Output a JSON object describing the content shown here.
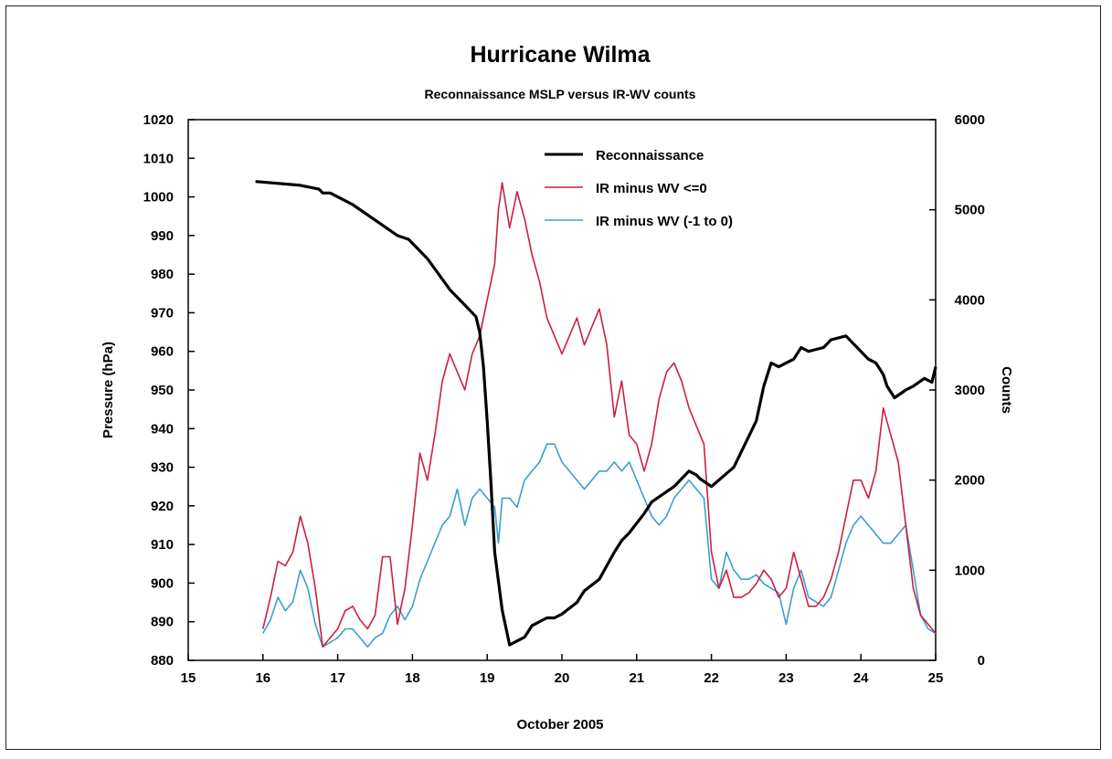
{
  "chart_data": {
    "type": "line",
    "title": "Hurricane Wilma",
    "subtitle": "Reconnaissance MSLP versus IR-WV counts",
    "xlabel": "October 2005",
    "ylabel_left": "Pressure (hPa)",
    "ylabel_right": "Counts",
    "xlim": [
      15,
      25
    ],
    "ylim_left": [
      880,
      1020
    ],
    "ylim_right": [
      0,
      6000
    ],
    "x_ticks": [
      "15",
      "16",
      "17",
      "18",
      "19",
      "20",
      "21",
      "22",
      "23",
      "24",
      "25"
    ],
    "y_left_ticks": [
      "880",
      "890",
      "900",
      "910",
      "920",
      "930",
      "940",
      "950",
      "960",
      "970",
      "980",
      "990",
      "1000",
      "1010",
      "1020"
    ],
    "y_right_ticks": [
      "0",
      "1000",
      "2000",
      "3000",
      "4000",
      "5000",
      "6000"
    ],
    "legend_position": "top-right",
    "grid": false,
    "series": [
      {
        "name": "Reconnaissance",
        "axis": "left",
        "color": "#000000",
        "x": [
          15.9,
          16.5,
          16.75,
          16.8,
          16.9,
          17.2,
          17.5,
          17.8,
          17.95,
          18.2,
          18.5,
          18.7,
          18.85,
          18.9,
          18.95,
          19.0,
          19.05,
          19.1,
          19.2,
          19.3,
          19.5,
          19.6,
          19.8,
          19.9,
          20.0,
          20.2,
          20.3,
          20.5,
          20.7,
          20.8,
          20.9,
          21.1,
          21.2,
          21.5,
          21.7,
          21.8,
          21.85,
          22.0,
          22.3,
          22.6,
          22.7,
          22.8,
          22.9,
          23.1,
          23.2,
          23.3,
          23.5,
          23.6,
          23.8,
          23.9,
          24.1,
          24.2,
          24.3,
          24.35,
          24.45,
          24.6,
          24.7,
          24.85,
          24.95,
          25.0
        ],
        "y": [
          1004,
          1003,
          1002,
          1001,
          1001,
          998,
          994,
          990,
          989,
          984,
          976,
          972,
          969,
          965,
          956,
          942,
          926,
          908,
          893,
          884,
          886,
          889,
          891,
          891,
          892,
          895,
          898,
          901,
          908,
          911,
          913,
          918,
          921,
          925,
          929,
          928,
          927,
          925,
          930,
          942,
          951,
          957,
          956,
          958,
          961,
          960,
          961,
          963,
          964,
          962,
          958,
          957,
          954,
          951,
          948,
          950,
          951,
          953,
          952,
          956
        ]
      },
      {
        "name": "IR minus WV <=0",
        "axis": "right",
        "color": "#cc1f3f",
        "x": [
          16.0,
          16.1,
          16.2,
          16.3,
          16.4,
          16.5,
          16.6,
          16.7,
          16.8,
          16.9,
          17.0,
          17.1,
          17.2,
          17.3,
          17.4,
          17.5,
          17.6,
          17.7,
          17.8,
          17.9,
          18.0,
          18.1,
          18.2,
          18.3,
          18.4,
          18.5,
          18.6,
          18.7,
          18.8,
          18.9,
          19.0,
          19.1,
          19.15,
          19.2,
          19.3,
          19.4,
          19.5,
          19.6,
          19.7,
          19.8,
          19.9,
          20.0,
          20.1,
          20.2,
          20.3,
          20.4,
          20.5,
          20.6,
          20.7,
          20.8,
          20.9,
          21.0,
          21.1,
          21.2,
          21.3,
          21.4,
          21.5,
          21.6,
          21.7,
          21.8,
          21.9,
          22.0,
          22.1,
          22.2,
          22.3,
          22.4,
          22.5,
          22.6,
          22.7,
          22.8,
          22.9,
          23.0,
          23.1,
          23.2,
          23.3,
          23.4,
          23.5,
          23.6,
          23.7,
          23.8,
          23.9,
          24.0,
          24.1,
          24.2,
          24.3,
          24.4,
          24.5,
          24.6,
          24.7,
          24.8,
          24.9,
          25.0
        ],
        "y": [
          350,
          700,
          1100,
          1050,
          1200,
          1600,
          1300,
          800,
          150,
          250,
          350,
          550,
          600,
          450,
          350,
          500,
          1150,
          1150,
          400,
          800,
          1500,
          2300,
          2000,
          2500,
          3100,
          3400,
          3200,
          3000,
          3400,
          3600,
          4000,
          4400,
          5000,
          5300,
          4800,
          5200,
          4900,
          4500,
          4200,
          3800,
          3600,
          3400,
          3600,
          3800,
          3500,
          3700,
          3900,
          3500,
          2700,
          3100,
          2500,
          2400,
          2100,
          2400,
          2900,
          3200,
          3300,
          3100,
          2800,
          2600,
          2400,
          1200,
          800,
          1000,
          700,
          700,
          750,
          850,
          1000,
          900,
          700,
          800,
          1200,
          900,
          600,
          600,
          700,
          900,
          1200,
          1600,
          2000,
          2000,
          1800,
          2100,
          2800,
          2500,
          2200,
          1500,
          800,
          500,
          400,
          300
        ]
      },
      {
        "name": "IR minus WV (-1 to 0)",
        "axis": "right",
        "color": "#3a9fd0",
        "x": [
          16.0,
          16.1,
          16.2,
          16.3,
          16.4,
          16.5,
          16.6,
          16.7,
          16.8,
          16.9,
          17.0,
          17.1,
          17.2,
          17.3,
          17.4,
          17.5,
          17.6,
          17.7,
          17.8,
          17.9,
          18.0,
          18.1,
          18.2,
          18.3,
          18.4,
          18.5,
          18.6,
          18.7,
          18.8,
          18.9,
          19.0,
          19.1,
          19.15,
          19.2,
          19.3,
          19.4,
          19.5,
          19.6,
          19.7,
          19.8,
          19.9,
          20.0,
          20.1,
          20.2,
          20.3,
          20.4,
          20.5,
          20.6,
          20.7,
          20.8,
          20.9,
          21.0,
          21.1,
          21.2,
          21.3,
          21.4,
          21.5,
          21.6,
          21.7,
          21.8,
          21.9,
          22.0,
          22.1,
          22.2,
          22.3,
          22.4,
          22.5,
          22.6,
          22.7,
          22.8,
          22.9,
          23.0,
          23.1,
          23.2,
          23.3,
          23.4,
          23.5,
          23.6,
          23.7,
          23.8,
          23.9,
          24.0,
          24.1,
          24.2,
          24.3,
          24.4,
          24.5,
          24.6,
          24.7,
          24.8,
          24.9,
          25.0
        ],
        "y": [
          300,
          450,
          700,
          550,
          650,
          1000,
          800,
          400,
          150,
          200,
          250,
          350,
          350,
          250,
          150,
          250,
          300,
          500,
          600,
          450,
          600,
          900,
          1100,
          1300,
          1500,
          1600,
          1900,
          1500,
          1800,
          1900,
          1800,
          1700,
          1300,
          1800,
          1800,
          1700,
          2000,
          2100,
          2200,
          2400,
          2400,
          2200,
          2100,
          2000,
          1900,
          2000,
          2100,
          2100,
          2200,
          2100,
          2200,
          2000,
          1800,
          1600,
          1500,
          1600,
          1800,
          1900,
          2000,
          1900,
          1800,
          900,
          800,
          1200,
          1000,
          900,
          900,
          950,
          850,
          800,
          750,
          400,
          800,
          1000,
          700,
          650,
          600,
          700,
          1000,
          1300,
          1500,
          1600,
          1500,
          1400,
          1300,
          1300,
          1400,
          1500,
          1000,
          500,
          350,
          300
        ]
      }
    ]
  }
}
